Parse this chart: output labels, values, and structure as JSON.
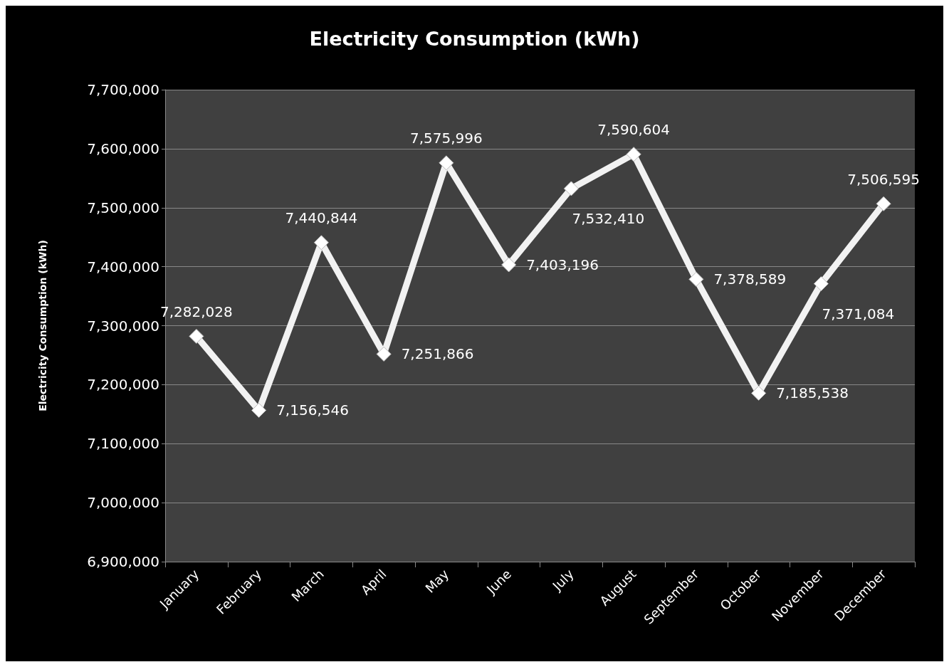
{
  "chart_data": {
    "type": "line",
    "title": "Electricity Consumption (kWh)",
    "ylabel": "Electricity Consumption (kWh)",
    "categories": [
      "January",
      "February",
      "March",
      "April",
      "May",
      "June",
      "July",
      "August",
      "September",
      "October",
      "November",
      "December"
    ],
    "series": [
      {
        "color": "#f2f2f2",
        "values": [
          7282028,
          7156546,
          7440844,
          7251866,
          7575996,
          7403196,
          7532410,
          7590604,
          7378589,
          7185538,
          7371084,
          7506595
        ],
        "value_labels": [
          "7,282,028",
          "7,156,546",
          "7,440,844",
          "7,251,866",
          "7,575,996",
          "7,403,196",
          "7,532,410",
          "7,590,604",
          "7,378,589",
          "7,185,538",
          "7,371,084",
          "7,506,595"
        ]
      }
    ],
    "ylim": [
      6900000,
      7700000
    ],
    "yticks": [
      {
        "value": 6900000,
        "label": "6,900,000"
      },
      {
        "value": 7000000,
        "label": "7,000,000"
      },
      {
        "value": 7100000,
        "label": "7,100,000"
      },
      {
        "value": 7200000,
        "label": "7,200,000"
      },
      {
        "value": 7300000,
        "label": "7,300,000"
      },
      {
        "value": 7400000,
        "label": "7,400,000"
      },
      {
        "value": 7500000,
        "label": "7,500,000"
      },
      {
        "value": 7600000,
        "label": "7,600,000"
      },
      {
        "value": 7700000,
        "label": "7,700,000"
      }
    ],
    "grid": "y",
    "marker": "diamond",
    "line_style": "solid"
  }
}
